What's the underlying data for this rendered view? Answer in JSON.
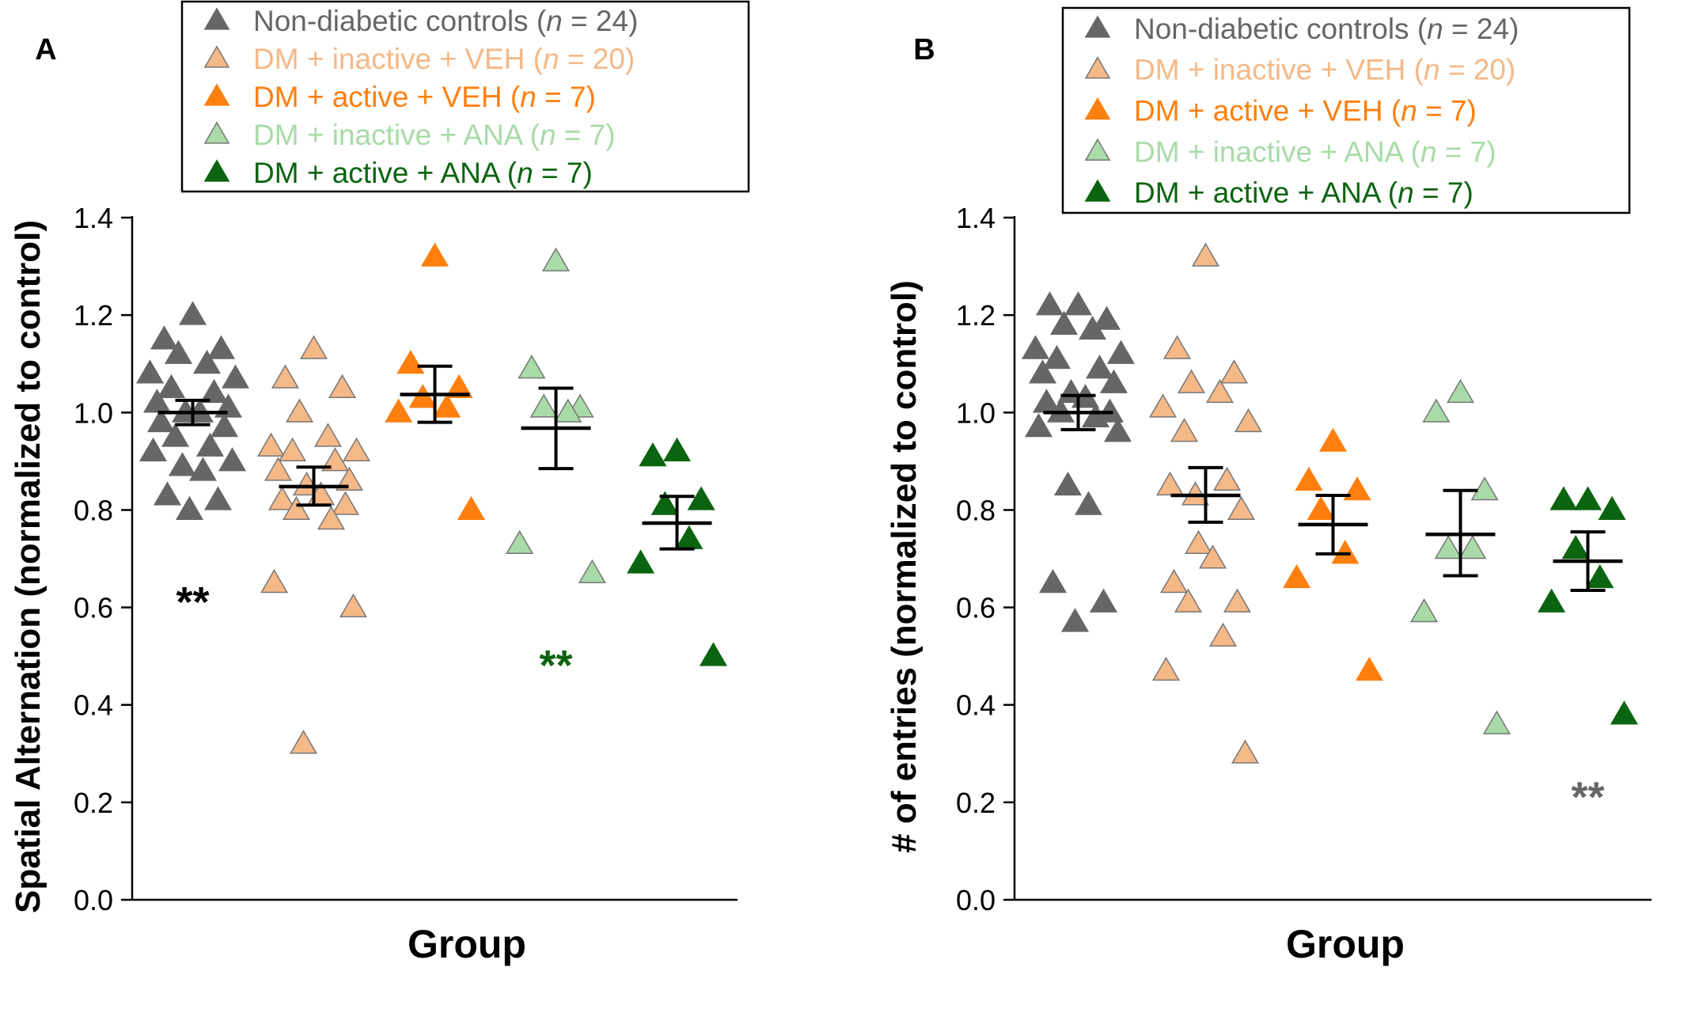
{
  "chart_data": [
    {
      "panel_label": "A",
      "type": "scatter",
      "xlabel": "Group",
      "ylabel": "Spatial Alternation (normalized to control)",
      "ylim": [
        0,
        1.4
      ],
      "yticks": [
        "0.0",
        "0.2",
        "0.4",
        "0.6",
        "0.8",
        "1.0",
        "1.2",
        "1.4"
      ],
      "legend_position": "top",
      "series": [
        {
          "name": "Non-diabetic controls (n = 24)",
          "name_prefix": "Non-diabetic controls (",
          "n_text": "n",
          "name_suffix": " = 24)",
          "color": "#666666",
          "marker": "filled-triangle",
          "values": [
            1.2,
            1.15,
            1.13,
            1.12,
            1.1,
            1.08,
            1.07,
            1.05,
            1.04,
            1.02,
            1.01,
            1.0,
            1.0,
            0.98,
            0.97,
            0.95,
            0.93,
            0.92,
            0.9,
            0.89,
            0.88,
            0.83,
            0.82,
            0.8
          ],
          "mean": 1.0,
          "sem_low": 0.975,
          "sem_high": 1.025
        },
        {
          "name": "DM + inactive + VEH (n = 20)",
          "name_prefix": "DM + inactive + VEH (",
          "n_text": "n",
          "name_suffix": " = 20)",
          "color": "#F5B887",
          "marker": "outlined-triangle",
          "values": [
            1.13,
            1.07,
            1.05,
            1.0,
            0.95,
            0.93,
            0.92,
            0.92,
            0.9,
            0.88,
            0.86,
            0.85,
            0.83,
            0.82,
            0.81,
            0.8,
            0.78,
            0.65,
            0.6,
            0.32
          ],
          "mean": 0.848,
          "sem_low": 0.81,
          "sem_high": 0.888
        },
        {
          "name": "DM + active + VEH (n = 7)",
          "name_prefix": "DM + active + VEH (",
          "n_text": "n",
          "name_suffix": " = 7)",
          "color": "#FF7F0E",
          "marker": "filled-triangle",
          "values": [
            1.32,
            1.1,
            1.05,
            1.03,
            1.01,
            1.0,
            0.8
          ],
          "mean": 1.037,
          "sem_low": 0.98,
          "sem_high": 1.095
        },
        {
          "name": "DM + inactive + ANA (n = 7)",
          "name_prefix": "DM + inactive + ANA (",
          "n_text": "n",
          "name_suffix": " = 7)",
          "color": "#A8DBA8",
          "marker": "outlined-triangle",
          "values": [
            1.31,
            1.09,
            1.01,
            1.01,
            1.0,
            0.73,
            0.67
          ],
          "mean": 0.968,
          "sem_low": 0.885,
          "sem_high": 1.05
        },
        {
          "name": "DM + active + ANA (n = 7)",
          "name_prefix": "DM + active + ANA (",
          "n_text": "n",
          "name_suffix": " = 7)",
          "color": "#0B6410",
          "marker": "filled-triangle",
          "values": [
            0.92,
            0.91,
            0.82,
            0.81,
            0.74,
            0.69,
            0.5
          ],
          "mean": 0.773,
          "sem_low": 0.72,
          "sem_high": 0.828
        }
      ],
      "annotations": [
        {
          "text": "**",
          "group": 0,
          "y": 0.63,
          "color": "#000000"
        },
        {
          "text": "**",
          "group": 3,
          "y": 0.5,
          "color": "#0B6410"
        }
      ]
    },
    {
      "panel_label": "B",
      "type": "scatter",
      "xlabel": "Group",
      "ylabel": "# of entries (normalized to control)",
      "ylim": [
        0,
        1.4
      ],
      "yticks": [
        "0.0",
        "0.2",
        "0.4",
        "0.6",
        "0.8",
        "1.0",
        "1.2",
        "1.4"
      ],
      "legend_position": "top",
      "series": [
        {
          "name": "Non-diabetic controls (n = 24)",
          "name_prefix": "Non-diabetic controls (",
          "n_text": "n",
          "name_suffix": " = 24)",
          "color": "#666666",
          "marker": "filled-triangle",
          "values": [
            1.22,
            1.22,
            1.19,
            1.18,
            1.17,
            1.13,
            1.12,
            1.11,
            1.09,
            1.08,
            1.06,
            1.04,
            1.03,
            1.02,
            1.0,
            1.0,
            0.99,
            0.97,
            0.96,
            0.85,
            0.81,
            0.65,
            0.61,
            0.57
          ],
          "mean": 1.0,
          "sem_low": 0.965,
          "sem_high": 1.035
        },
        {
          "name": "DM + inactive + VEH (n = 20)",
          "name_prefix": "DM + inactive + VEH (",
          "n_text": "n",
          "name_suffix": " = 20)",
          "color": "#F5B887",
          "marker": "outlined-triangle",
          "values": [
            1.32,
            1.13,
            1.08,
            1.06,
            1.04,
            1.01,
            0.98,
            0.96,
            0.86,
            0.85,
            0.8,
            0.73,
            0.7,
            0.65,
            0.61,
            0.61,
            0.54,
            0.47,
            0.3,
            0.83
          ],
          "mean": 0.83,
          "sem_low": 0.775,
          "sem_high": 0.887
        },
        {
          "name": "DM + active + VEH (n = 7)",
          "name_prefix": "DM + active + VEH (",
          "n_text": "n",
          "name_suffix": " = 7)",
          "color": "#FF7F0E",
          "marker": "filled-triangle",
          "values": [
            0.94,
            0.86,
            0.84,
            0.8,
            0.71,
            0.66,
            0.47
          ],
          "mean": 0.77,
          "sem_low": 0.71,
          "sem_high": 0.83
        },
        {
          "name": "DM + inactive + ANA (n = 7)",
          "name_prefix": "DM + inactive + ANA (",
          "n_text": "n",
          "name_suffix": " = 7)",
          "color": "#A8DBA8",
          "marker": "outlined-triangle",
          "values": [
            1.04,
            1.0,
            0.84,
            0.72,
            0.72,
            0.59,
            0.36
          ],
          "mean": 0.75,
          "sem_low": 0.665,
          "sem_high": 0.84
        },
        {
          "name": "DM + active + ANA (n = 7)",
          "name_prefix": "DM + active + ANA (",
          "n_text": "n",
          "name_suffix": " = 7)",
          "color": "#0B6410",
          "marker": "filled-triangle",
          "values": [
            0.82,
            0.82,
            0.8,
            0.72,
            0.66,
            0.61,
            0.38
          ],
          "mean": 0.695,
          "sem_low": 0.635,
          "sem_high": 0.755
        }
      ],
      "annotations": [
        {
          "text": "**",
          "group": 4,
          "y": 0.23,
          "color": "#666666"
        }
      ]
    }
  ]
}
